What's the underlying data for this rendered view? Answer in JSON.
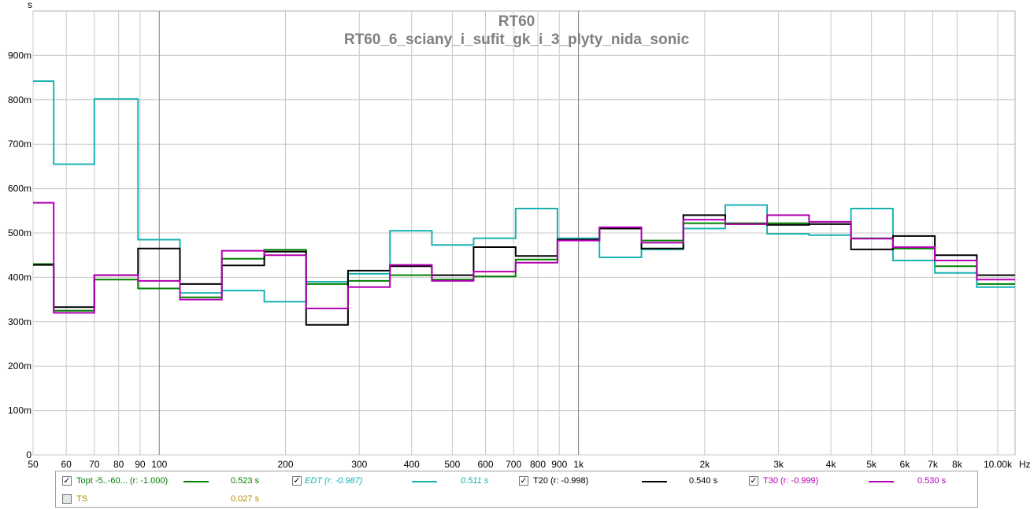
{
  "chart_data": {
    "type": "line",
    "title": "RT60",
    "subtitle": "RT60_6_sciany_i_sufit_gk_i_3_plyty_nida_sonic",
    "ylabel": "s",
    "xlabel": "Hz",
    "x_scale": "log",
    "xlim": [
      50,
      11000
    ],
    "ylim": [
      0,
      1.0
    ],
    "grid": true,
    "y_ticks": [
      {
        "value": 0,
        "label": "0"
      },
      {
        "value": 0.1,
        "label": "100m"
      },
      {
        "value": 0.2,
        "label": "200m"
      },
      {
        "value": 0.3,
        "label": "300m"
      },
      {
        "value": 0.4,
        "label": "400m"
      },
      {
        "value": 0.5,
        "label": "500m"
      },
      {
        "value": 0.6,
        "label": "600m"
      },
      {
        "value": 0.7,
        "label": "700m"
      },
      {
        "value": 0.8,
        "label": "800m"
      },
      {
        "value": 0.9,
        "label": "900m"
      }
    ],
    "x_ticks": [
      {
        "value": 50,
        "label": "50"
      },
      {
        "value": 60,
        "label": "60"
      },
      {
        "value": 70,
        "label": "70"
      },
      {
        "value": 80,
        "label": "80"
      },
      {
        "value": 90,
        "label": "90"
      },
      {
        "value": 100,
        "label": "100"
      },
      {
        "value": 200,
        "label": "200"
      },
      {
        "value": 300,
        "label": "300"
      },
      {
        "value": 400,
        "label": "400"
      },
      {
        "value": 500,
        "label": "500"
      },
      {
        "value": 600,
        "label": "600"
      },
      {
        "value": 700,
        "label": "700"
      },
      {
        "value": 800,
        "label": "800"
      },
      {
        "value": 900,
        "label": "900"
      },
      {
        "value": 1000,
        "label": "1k"
      },
      {
        "value": 2000,
        "label": "2k"
      },
      {
        "value": 3000,
        "label": "3k"
      },
      {
        "value": 4000,
        "label": "4k"
      },
      {
        "value": 5000,
        "label": "5k"
      },
      {
        "value": 6000,
        "label": "6k"
      },
      {
        "value": 7000,
        "label": "7k"
      },
      {
        "value": 8000,
        "label": "8k"
      },
      {
        "value": 10000,
        "label": "10.00k"
      }
    ],
    "bands": [
      50,
      56,
      70,
      89,
      112,
      141,
      178,
      224,
      282,
      355,
      447,
      562,
      708,
      891,
      1122,
      1413,
      1778,
      2239,
      2818,
      3548,
      4467,
      5623,
      7079,
      8913,
      11000
    ],
    "series": [
      {
        "name": "Topt -5..-60... (r: -1.000)",
        "color": "#007f00",
        "values": [
          0.43,
          0.325,
          0.395,
          0.375,
          0.355,
          0.442,
          0.462,
          0.385,
          0.392,
          0.405,
          0.395,
          0.402,
          0.44,
          0.485,
          0.51,
          0.483,
          0.522,
          0.522,
          0.522,
          0.52,
          0.488,
          0.465,
          0.425,
          0.385
        ]
      },
      {
        "name": "EDT (r: -0.987)",
        "color": "#19b2b2",
        "values": [
          0.842,
          0.655,
          0.802,
          0.485,
          0.365,
          0.37,
          0.345,
          0.39,
          0.408,
          0.505,
          0.473,
          0.488,
          0.555,
          0.488,
          0.445,
          0.463,
          0.51,
          0.563,
          0.498,
          0.495,
          0.555,
          0.438,
          0.41,
          0.378
        ]
      },
      {
        "name": "T20 (r: -0.998)",
        "color": "#000000",
        "values": [
          0.428,
          0.333,
          0.405,
          0.465,
          0.385,
          0.427,
          0.458,
          0.293,
          0.415,
          0.425,
          0.405,
          0.468,
          0.448,
          0.485,
          0.51,
          0.465,
          0.54,
          0.52,
          0.518,
          0.52,
          0.463,
          0.493,
          0.45,
          0.405
        ]
      },
      {
        "name": "T30 (r: -0.999)",
        "color": "#b200b2",
        "values": [
          0.568,
          0.32,
          0.405,
          0.392,
          0.35,
          0.46,
          0.45,
          0.33,
          0.378,
          0.428,
          0.392,
          0.413,
          0.433,
          0.483,
          0.513,
          0.478,
          0.53,
          0.52,
          0.54,
          0.525,
          0.487,
          0.468,
          0.438,
          0.395
        ]
      }
    ]
  },
  "legend": {
    "items": [
      {
        "label": "Topt -5..-60... (r: -1.000)",
        "value": "0.523 s",
        "checked": true,
        "color": "#007f00",
        "has_line": true,
        "italic": false
      },
      {
        "label": "EDT (r: -0.987)",
        "value": "0.511 s",
        "checked": true,
        "color": "#19b2b2",
        "has_line": true,
        "italic": true
      },
      {
        "label": "T20 (r: -0.998)",
        "value": "0.540 s",
        "checked": true,
        "color": "#000000",
        "has_line": true,
        "italic": false
      },
      {
        "label": "T30 (r: -0.999)",
        "value": "0.530 s",
        "checked": true,
        "color": "#b200b2",
        "has_line": true,
        "italic": false
      },
      {
        "label": "TS",
        "value": "0.027 s",
        "checked": false,
        "color": "#b28c00",
        "has_line": false,
        "italic": false
      }
    ]
  }
}
